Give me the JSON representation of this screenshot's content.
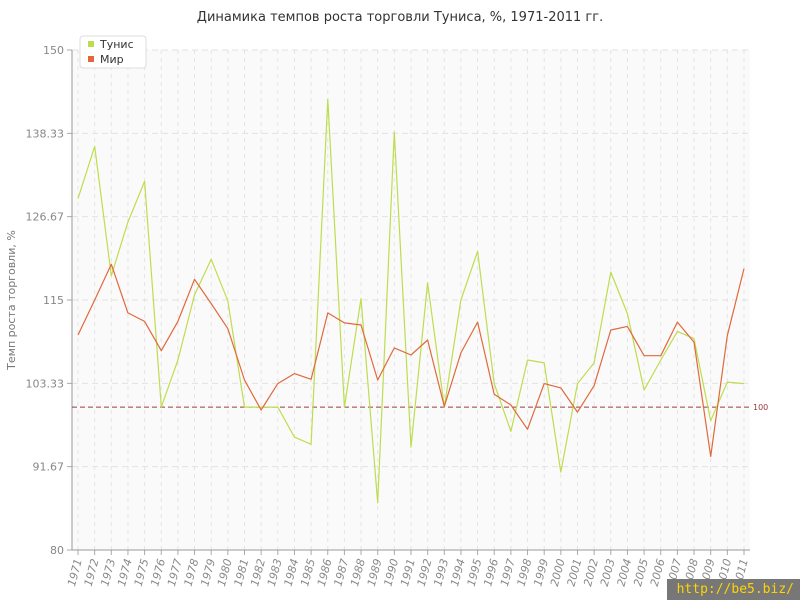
{
  "watermark": "http://be5.biz/",
  "chart_data": {
    "type": "line",
    "title": "Динамика темпов роста торговли Туниса, %, 1971-2011 гг.",
    "xlabel": "",
    "ylabel": "Темп роста торговли, %",
    "ylim": [
      80,
      150
    ],
    "y_ticks": [
      "80",
      "91.67",
      "103.33",
      "115",
      "126.67",
      "138.33",
      "150"
    ],
    "x": [
      "1971",
      "1972",
      "1973",
      "1974",
      "1975",
      "1976",
      "1977",
      "1978",
      "1979",
      "1980",
      "1981",
      "1982",
      "1983",
      "1984",
      "1985",
      "1986",
      "1987",
      "1988",
      "1989",
      "1990",
      "1991",
      "1992",
      "1993",
      "1994",
      "1995",
      "1996",
      "1997",
      "1998",
      "1999",
      "2000",
      "2001",
      "2002",
      "2003",
      "2004",
      "2005",
      "2006",
      "2007",
      "2008",
      "2009",
      "2010",
      "2011"
    ],
    "series": [
      {
        "name": "Тунис",
        "color": "#bedd4e",
        "values": [
          129.2,
          136.5,
          118.4,
          125.9,
          131.6,
          100.0,
          106.6,
          115.7,
          120.7,
          114.9,
          100.0,
          100.0,
          100.0,
          95.8,
          94.8,
          143.1,
          100.0,
          115.2,
          86.6,
          138.5,
          94.4,
          117.4,
          100.0,
          115.0,
          121.8,
          103.3,
          96.6,
          106.6,
          106.2,
          90.9,
          103.3,
          106.2,
          118.9,
          113.1,
          102.4,
          106.6,
          110.6,
          109.6,
          98.1,
          103.5,
          103.3
        ]
      },
      {
        "name": "Мир",
        "color": "#e0693c",
        "values": [
          110.1,
          115.0,
          120.0,
          113.2,
          112.0,
          107.9,
          112.0,
          117.9,
          114.5,
          111.0,
          103.8,
          99.6,
          103.3,
          104.7,
          103.9,
          113.2,
          111.8,
          111.5,
          103.8,
          108.3,
          107.3,
          109.4,
          100.1,
          107.6,
          111.9,
          101.8,
          100.3,
          96.9,
          103.3,
          102.7,
          99.3,
          103.0,
          110.8,
          111.3,
          107.2,
          107.2,
          111.9,
          109.1,
          93.1,
          110.0,
          119.4
        ]
      }
    ],
    "reference_line": {
      "value": 100,
      "label": "100",
      "color": "#9b3a3a"
    },
    "grid": true,
    "legend_position": "top-left"
  }
}
